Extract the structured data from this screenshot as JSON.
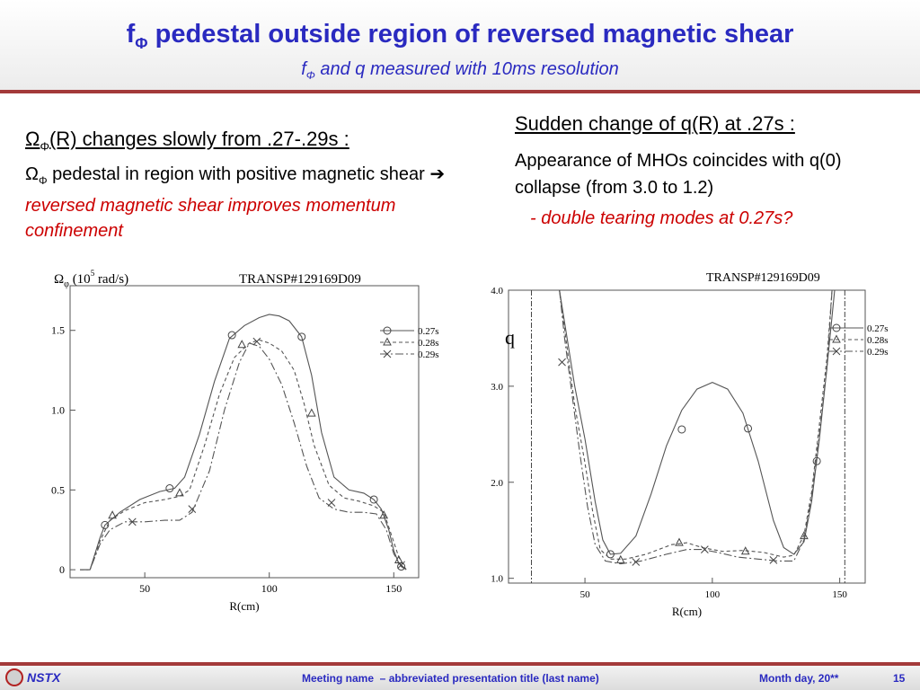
{
  "header": {
    "title_main": "f",
    "title_sub": "Φ",
    "title_rest": " pedestal outside region of reversed magnetic shear",
    "subtitle_main": "f",
    "subtitle_sub": "Φ",
    "subtitle_rest": " and q measured with 10ms resolution"
  },
  "left": {
    "heading_main": "Ω",
    "heading_sub": "Φ",
    "heading_rest": "(R) changes slowly from .27-.29s :",
    "body_main": "Ω",
    "body_sub": "Φ",
    "body_rest": " pedestal in region with positive magnetic shear ",
    "arrow": "➔",
    "body_red": "reversed magnetic shear improves momentum confinement"
  },
  "right": {
    "heading": "Sudden change of q(R) at .27s :",
    "body": "Appearance of MHOs coincides with q(0) collapse (from 3.0 to 1.2)",
    "note": "- double tearing modes at 0.27s?"
  },
  "colors": {
    "title": "#2a2ac0",
    "rule": "#a33a3a",
    "emphasis": "#cc0000"
  },
  "chart_data": [
    {
      "type": "line",
      "ylabel_main": "Ω",
      "ylabel_sub": "φ",
      "ylabel_rest": " (10",
      "ylabel_exp": "5",
      "ylabel_unit": " rad/s)",
      "annotation": "TRANSP#129169D09",
      "xlabel": "R(cm)",
      "xlim": [
        20,
        160
      ],
      "ylim": [
        -0.05,
        1.78
      ],
      "xticks": [
        {
          "v": 50,
          "label": "50"
        },
        {
          "v": 100,
          "label": "100"
        },
        {
          "v": 150,
          "label": "150"
        }
      ],
      "yticks": [
        {
          "v": 0,
          "label": "0"
        },
        {
          "v": 0.5,
          "label": "0.5"
        },
        {
          "v": 1.0,
          "label": "1.0"
        },
        {
          "v": 1.5,
          "label": "1.5"
        }
      ],
      "legend": "right",
      "series": [
        {
          "name": "0.27s",
          "style": "solid",
          "marker": "circle",
          "points": [
            [
              24,
              0
            ],
            [
              28,
              0
            ],
            [
              32,
              0.2
            ],
            [
              34,
              0.28
            ],
            [
              40,
              0.36
            ],
            [
              48,
              0.44
            ],
            [
              56,
              0.49
            ],
            [
              62,
              0.51
            ],
            [
              66,
              0.58
            ],
            [
              72,
              0.85
            ],
            [
              78,
              1.18
            ],
            [
              84,
              1.45
            ],
            [
              90,
              1.53
            ],
            [
              96,
              1.58
            ],
            [
              100,
              1.6
            ],
            [
              104,
              1.59
            ],
            [
              108,
              1.56
            ],
            [
              113,
              1.46
            ],
            [
              117,
              1.22
            ],
            [
              121,
              0.86
            ],
            [
              126,
              0.58
            ],
            [
              132,
              0.5
            ],
            [
              138,
              0.48
            ],
            [
              142,
              0.44
            ],
            [
              145,
              0.38
            ],
            [
              148,
              0.25
            ],
            [
              150,
              0.12
            ],
            [
              152,
              0.04
            ],
            [
              155,
              0
            ]
          ],
          "markers": [
            [
              34,
              0.28
            ],
            [
              60,
              0.51
            ],
            [
              85,
              1.47
            ],
            [
              113,
              1.46
            ],
            [
              142,
              0.44
            ],
            [
              153,
              0.02
            ]
          ]
        },
        {
          "name": "0.28s",
          "style": "dashed",
          "marker": "triangle",
          "points": [
            [
              24,
              0
            ],
            [
              28,
              0
            ],
            [
              32,
              0.18
            ],
            [
              36,
              0.31
            ],
            [
              42,
              0.37
            ],
            [
              50,
              0.42
            ],
            [
              58,
              0.44
            ],
            [
              64,
              0.46
            ],
            [
              68,
              0.5
            ],
            [
              74,
              0.78
            ],
            [
              80,
              1.1
            ],
            [
              86,
              1.33
            ],
            [
              92,
              1.42
            ],
            [
              96,
              1.44
            ],
            [
              100,
              1.42
            ],
            [
              105,
              1.37
            ],
            [
              110,
              1.25
            ],
            [
              114,
              1.04
            ],
            [
              118,
              0.78
            ],
            [
              124,
              0.53
            ],
            [
              130,
              0.45
            ],
            [
              136,
              0.43
            ],
            [
              142,
              0.4
            ],
            [
              146,
              0.36
            ],
            [
              149,
              0.22
            ],
            [
              152,
              0.08
            ],
            [
              155,
              0
            ]
          ],
          "markers": [
            [
              37,
              0.34
            ],
            [
              64,
              0.48
            ],
            [
              89,
              1.41
            ],
            [
              117,
              0.98
            ],
            [
              146,
              0.34
            ],
            [
              152,
              0.06
            ]
          ]
        },
        {
          "name": "0.29s",
          "style": "dashdot",
          "marker": "x",
          "points": [
            [
              24,
              0
            ],
            [
              28,
              0
            ],
            [
              32,
              0.16
            ],
            [
              36,
              0.25
            ],
            [
              42,
              0.3
            ],
            [
              50,
              0.3
            ],
            [
              58,
              0.31
            ],
            [
              64,
              0.31
            ],
            [
              69,
              0.36
            ],
            [
              76,
              0.62
            ],
            [
              82,
              1.0
            ],
            [
              88,
              1.3
            ],
            [
              92,
              1.42
            ],
            [
              96,
              1.4
            ],
            [
              100,
              1.32
            ],
            [
              105,
              1.16
            ],
            [
              110,
              0.92
            ],
            [
              115,
              0.65
            ],
            [
              120,
              0.45
            ],
            [
              126,
              0.38
            ],
            [
              132,
              0.36
            ],
            [
              138,
              0.36
            ],
            [
              143,
              0.35
            ],
            [
              147,
              0.25
            ],
            [
              150,
              0.1
            ],
            [
              153,
              0.02
            ],
            [
              155,
              0
            ]
          ],
          "markers": [
            [
              45,
              0.3
            ],
            [
              69,
              0.38
            ],
            [
              95,
              1.43
            ],
            [
              125,
              0.42
            ],
            [
              153,
              0.03
            ]
          ]
        }
      ]
    },
    {
      "type": "line",
      "ylabel": "q",
      "annotation": "TRANSP#129169D09",
      "xlabel": "R(cm)",
      "xlim": [
        20,
        160
      ],
      "ylim": [
        0.95,
        4.0
      ],
      "xticks": [
        {
          "v": 50,
          "label": "50"
        },
        {
          "v": 100,
          "label": "100"
        },
        {
          "v": 150,
          "label": "150"
        }
      ],
      "yticks": [
        {
          "v": 1.0,
          "label": "1.0"
        },
        {
          "v": 2.0,
          "label": "2.0"
        },
        {
          "v": 3.0,
          "label": "3.0"
        },
        {
          "v": 4.0,
          "label": "4.0"
        }
      ],
      "legend": "right",
      "series": [
        {
          "name": "0.27s",
          "style": "solid",
          "marker": "circle",
          "points": [
            [
              40,
              4.0
            ],
            [
              43,
              3.5
            ],
            [
              46,
              3.0
            ],
            [
              50,
              2.45
            ],
            [
              54,
              1.8
            ],
            [
              57,
              1.4
            ],
            [
              60,
              1.25
            ],
            [
              64,
              1.26
            ],
            [
              70,
              1.44
            ],
            [
              76,
              1.88
            ],
            [
              82,
              2.38
            ],
            [
              88,
              2.75
            ],
            [
              94,
              2.97
            ],
            [
              100,
              3.04
            ],
            [
              106,
              2.97
            ],
            [
              112,
              2.72
            ],
            [
              118,
              2.22
            ],
            [
              124,
              1.6
            ],
            [
              128,
              1.32
            ],
            [
              132,
              1.25
            ],
            [
              136,
              1.38
            ],
            [
              139,
              1.8
            ],
            [
              142,
              2.45
            ],
            [
              145,
              3.2
            ],
            [
              148,
              4.0
            ]
          ],
          "markers": [
            [
              60,
              1.25
            ],
            [
              88,
              2.55
            ],
            [
              114,
              2.56
            ],
            [
              141,
              2.22
            ]
          ]
        },
        {
          "name": "0.28s",
          "style": "dashed",
          "marker": "triangle",
          "points": [
            [
              40,
              4.0
            ],
            [
              43,
              3.4
            ],
            [
              46,
              2.8
            ],
            [
              50,
              2.2
            ],
            [
              53,
              1.7
            ],
            [
              56,
              1.3
            ],
            [
              60,
              1.2
            ],
            [
              66,
              1.2
            ],
            [
              74,
              1.25
            ],
            [
              84,
              1.35
            ],
            [
              90,
              1.37
            ],
            [
              96,
              1.32
            ],
            [
              104,
              1.28
            ],
            [
              112,
              1.29
            ],
            [
              120,
              1.27
            ],
            [
              128,
              1.22
            ],
            [
              132,
              1.24
            ],
            [
              136,
              1.45
            ],
            [
              139,
              1.9
            ],
            [
              142,
              2.6
            ],
            [
              145,
              3.3
            ],
            [
              147,
              4.0
            ]
          ],
          "markers": [
            [
              64,
              1.19
            ],
            [
              87,
              1.37
            ],
            [
              113,
              1.28
            ],
            [
              136,
              1.44
            ]
          ]
        },
        {
          "name": "0.29s",
          "style": "dashdot",
          "marker": "x",
          "points": [
            [
              40,
              4.0
            ],
            [
              42,
              3.5
            ],
            [
              45,
              2.9
            ],
            [
              48,
              2.3
            ],
            [
              51,
              1.75
            ],
            [
              54,
              1.35
            ],
            [
              58,
              1.18
            ],
            [
              64,
              1.15
            ],
            [
              72,
              1.18
            ],
            [
              82,
              1.25
            ],
            [
              90,
              1.3
            ],
            [
              96,
              1.3
            ],
            [
              102,
              1.27
            ],
            [
              110,
              1.22
            ],
            [
              118,
              1.2
            ],
            [
              126,
              1.18
            ],
            [
              132,
              1.18
            ],
            [
              136,
              1.4
            ],
            [
              139,
              1.85
            ],
            [
              142,
              2.5
            ],
            [
              145,
              3.2
            ],
            [
              147,
              4.0
            ]
          ],
          "markers": [
            [
              41,
              3.25
            ],
            [
              70,
              1.17
            ],
            [
              97,
              1.3
            ],
            [
              124,
              1.19
            ]
          ]
        }
      ]
    }
  ]
}
